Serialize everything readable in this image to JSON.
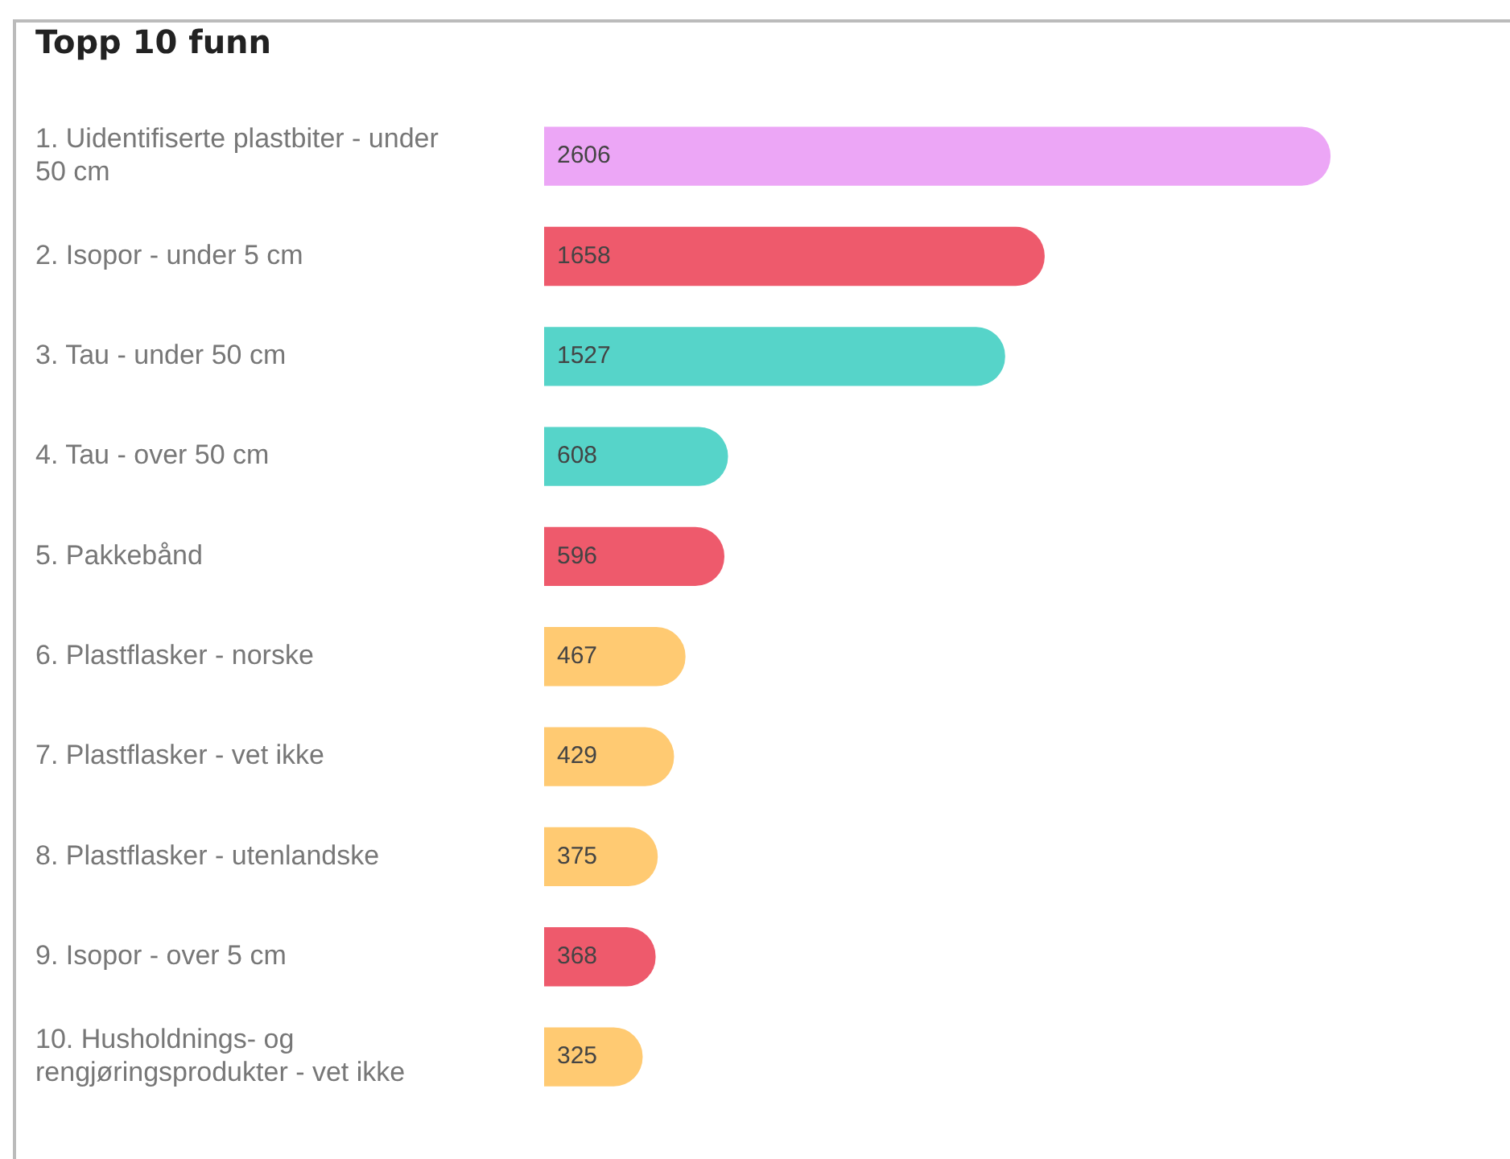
{
  "chart_data": {
    "type": "bar",
    "orientation": "horizontal",
    "title": "Topp 10 funn",
    "categories": [
      "1. Uidentifiserte plastbiter - under 50 cm",
      "2. Isopor - under 5 cm",
      "3. Tau - under 50 cm",
      "4. Tau - over 50 cm",
      "5. Pakkebånd",
      "6. Plastflasker - norske",
      "7. Plastflasker - vet ikke",
      "8. Plastflasker - utenlandske",
      "9. Isopor - over 5 cm",
      "10. Husholdnings- og rengjøringsprodukter - vet ikke"
    ],
    "values": [
      2606,
      1658,
      1527,
      608,
      596,
      467,
      429,
      375,
      368,
      325
    ],
    "colors": [
      "#eca6f6",
      "#ee5a6c",
      "#56d4c9",
      "#56d4c9",
      "#ee5a6c",
      "#ffca72",
      "#ffca72",
      "#ffca72",
      "#ee5a6c",
      "#ffca72"
    ],
    "data_labels": true,
    "legend": false
  }
}
